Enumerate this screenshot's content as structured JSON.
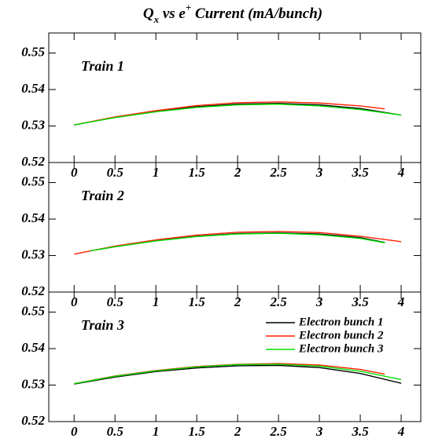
{
  "title": [
    {
      "text": "Q",
      "shift": "normal"
    },
    {
      "text": "x",
      "shift": "sub"
    },
    {
      "text": " vs e",
      "shift": "normal"
    },
    {
      "text": "+",
      "shift": "sup"
    },
    {
      "text": " Current (mA/bunch)",
      "shift": "normal"
    }
  ],
  "chart_data": [
    {
      "type": "line",
      "label": "Train 1",
      "legend": false,
      "xlim": [
        -0.31,
        4.24
      ],
      "xticks": [
        0,
        0.5,
        1,
        1.5,
        2,
        2.5,
        3,
        3.5,
        4
      ],
      "ylim": [
        0.52,
        0.5555
      ],
      "yticks": [
        0.52,
        0.53,
        0.54,
        0.55
      ],
      "series": [
        {
          "name": "Electron bunch 1",
          "color": "#000000",
          "x": [
            0,
            0.5,
            1,
            1.5,
            2,
            2.5,
            3,
            3.5,
            4
          ],
          "values": [
            0.5303,
            0.5324,
            0.534,
            0.5353,
            0.536,
            0.5362,
            0.5358,
            0.5348,
            0.533
          ]
        },
        {
          "name": "Electron bunch 2",
          "color": "#ff2000",
          "x": [
            0,
            0.5,
            1,
            1.5,
            2,
            2.5,
            3,
            3.5,
            3.8
          ],
          "values": [
            0.5303,
            0.5325,
            0.5342,
            0.5356,
            0.5364,
            0.5366,
            0.5363,
            0.5355,
            0.5347
          ]
        },
        {
          "name": "Electron bunch 3",
          "color": "#00e000",
          "x": [
            0,
            0.5,
            1,
            1.5,
            2,
            2.5,
            3,
            3.5,
            4
          ],
          "values": [
            0.5303,
            0.5323,
            0.5339,
            0.5351,
            0.5358,
            0.536,
            0.5355,
            0.5345,
            0.533
          ]
        }
      ]
    },
    {
      "type": "line",
      "label": "Train 2",
      "legend": false,
      "xlim": [
        -0.31,
        4.24
      ],
      "xticks": [
        0,
        0.5,
        1,
        1.5,
        2,
        2.5,
        3,
        3.5,
        4
      ],
      "ylim": [
        0.52,
        0.5555
      ],
      "yticks": [
        0.52,
        0.53,
        0.54,
        0.55
      ],
      "series": [
        {
          "name": "Electron bunch 1",
          "color": "#000000",
          "x": [
            0.2,
            0.5,
            1,
            1.5,
            2,
            2.5,
            3,
            3.5,
            3.8
          ],
          "values": [
            0.5313,
            0.5324,
            0.5341,
            0.5353,
            0.536,
            0.5362,
            0.5359,
            0.5349,
            0.5336
          ]
        },
        {
          "name": "Electron bunch 2",
          "color": "#ff2000",
          "x": [
            0,
            0.5,
            1,
            1.5,
            2,
            2.5,
            3,
            3.5,
            4
          ],
          "values": [
            0.5304,
            0.5326,
            0.5343,
            0.5356,
            0.5364,
            0.5366,
            0.5363,
            0.5353,
            0.5338
          ]
        },
        {
          "name": "Electron bunch 3",
          "color": "#00e000",
          "x": [
            0.2,
            0.5,
            1,
            1.5,
            2,
            2.5,
            3,
            3.5,
            3.8
          ],
          "values": [
            0.5313,
            0.5324,
            0.534,
            0.5352,
            0.5359,
            0.5361,
            0.5357,
            0.5347,
            0.5335
          ]
        }
      ]
    },
    {
      "type": "line",
      "label": "Train 3",
      "legend": true,
      "xlim": [
        -0.31,
        4.24
      ],
      "xticks": [
        0,
        0.5,
        1,
        1.5,
        2,
        2.5,
        3,
        3.5,
        4
      ],
      "ylim": [
        0.52,
        0.5555
      ],
      "yticks": [
        0.52,
        0.53,
        0.54,
        0.55
      ],
      "series": [
        {
          "name": "Electron bunch 1",
          "color": "#000000",
          "x": [
            0,
            0.5,
            1,
            1.5,
            2,
            2.5,
            3,
            3.5,
            4
          ],
          "values": [
            0.5303,
            0.5322,
            0.5337,
            0.5347,
            0.5353,
            0.5354,
            0.5348,
            0.5332,
            0.5305
          ]
        },
        {
          "name": "Electron bunch 2",
          "color": "#ff2000",
          "x": [
            0,
            0.5,
            1,
            1.5,
            2,
            2.5,
            3,
            3.5,
            3.8
          ],
          "values": [
            0.5304,
            0.5325,
            0.534,
            0.5351,
            0.5357,
            0.5359,
            0.5355,
            0.5343,
            0.533
          ]
        },
        {
          "name": "Electron bunch 3",
          "color": "#00e000",
          "x": [
            0,
            0.5,
            1,
            1.5,
            2,
            2.5,
            3,
            3.5,
            4
          ],
          "values": [
            0.5304,
            0.5324,
            0.5339,
            0.535,
            0.5356,
            0.5357,
            0.5352,
            0.5338,
            0.5315
          ]
        }
      ]
    }
  ]
}
